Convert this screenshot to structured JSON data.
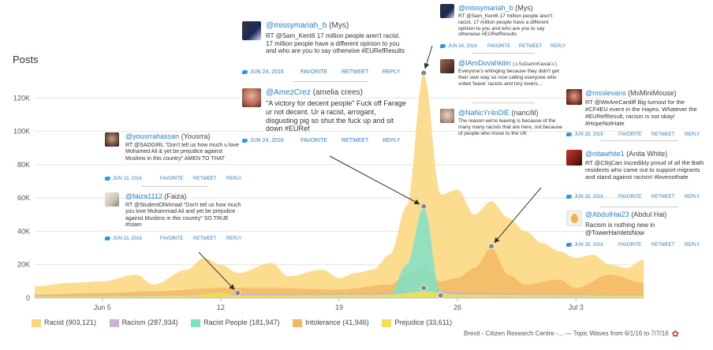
{
  "chart_data": {
    "type": "area",
    "ylabel": "Posts",
    "ylim": [
      0,
      140000
    ],
    "y_ticks": [
      0,
      20000,
      40000,
      60000,
      80000,
      100000,
      120000
    ],
    "y_tick_labels": [
      "0",
      "20K",
      "40K",
      "60K",
      "80K",
      "100K",
      "120K"
    ],
    "x_ticks": [
      "2016-06-05",
      "2016-06-12",
      "2016-06-19",
      "2016-06-26",
      "2016-07-03"
    ],
    "x_tick_labels": [
      "Jun 5",
      "12",
      "19",
      "26",
      "Jul 3"
    ],
    "x_range": [
      "2016-06-01",
      "2016-07-07"
    ],
    "legend": [
      {
        "name": "Racist (903,121)",
        "color": "#fcd67a"
      },
      {
        "name": "Racism (287,934)",
        "color": "#c8b4d9"
      },
      {
        "name": "Racist People (181,947)",
        "color": "#7fe0c8"
      },
      {
        "name": "Intolerance (41,946)",
        "color": "#f2b865"
      },
      {
        "name": "Prejudice (33,611)",
        "color": "#f4e04d"
      }
    ],
    "series": [
      {
        "name": "Racist",
        "color": "#fcd67a",
        "points": [
          [
            "2016-06-01",
            7000
          ],
          [
            "2016-06-03",
            9000
          ],
          [
            "2016-06-05",
            10000
          ],
          [
            "2016-06-07",
            14000
          ],
          [
            "2016-06-08",
            8000
          ],
          [
            "2016-06-10",
            17000
          ],
          [
            "2016-06-11",
            24000
          ],
          [
            "2016-06-12",
            20000
          ],
          [
            "2016-06-13",
            15000
          ],
          [
            "2016-06-15",
            21000
          ],
          [
            "2016-06-16",
            13000
          ],
          [
            "2016-06-18",
            17000
          ],
          [
            "2016-06-19",
            12000
          ],
          [
            "2016-06-20",
            15000
          ],
          [
            "2016-06-21",
            17000
          ],
          [
            "2016-06-22",
            26000
          ],
          [
            "2016-06-23",
            55000
          ],
          [
            "2016-06-24",
            135000
          ],
          [
            "2016-06-25",
            62000
          ],
          [
            "2016-06-26",
            65000
          ],
          [
            "2016-06-27",
            50000
          ],
          [
            "2016-06-28",
            58000
          ],
          [
            "2016-06-29",
            48000
          ],
          [
            "2016-06-30",
            40000
          ],
          [
            "2016-07-01",
            33000
          ],
          [
            "2016-07-02",
            28000
          ],
          [
            "2016-07-03",
            24000
          ],
          [
            "2016-07-04",
            26000
          ],
          [
            "2016-07-05",
            20000
          ],
          [
            "2016-07-06",
            18000
          ],
          [
            "2016-07-07",
            23000
          ]
        ]
      },
      {
        "name": "Intolerance",
        "color": "#f2b865",
        "points": [
          [
            "2016-06-01",
            2000
          ],
          [
            "2016-06-05",
            3000
          ],
          [
            "2016-06-08",
            4000
          ],
          [
            "2016-06-12",
            6000
          ],
          [
            "2016-06-15",
            6000
          ],
          [
            "2016-06-19",
            5000
          ],
          [
            "2016-06-22",
            8000
          ],
          [
            "2016-06-23",
            14000
          ],
          [
            "2016-06-24",
            18000
          ],
          [
            "2016-06-25",
            10000
          ],
          [
            "2016-06-26",
            12000
          ],
          [
            "2016-06-27",
            18000
          ],
          [
            "2016-06-28",
            30000
          ],
          [
            "2016-06-29",
            14000
          ],
          [
            "2016-06-30",
            8000
          ],
          [
            "2016-07-02",
            11000
          ],
          [
            "2016-07-03",
            6000
          ],
          [
            "2016-07-05",
            14000
          ],
          [
            "2016-07-07",
            9000
          ]
        ]
      },
      {
        "name": "Racism",
        "color": "#c8b4d9",
        "points": [
          [
            "2016-06-01",
            1500
          ],
          [
            "2016-06-08",
            2000
          ],
          [
            "2016-06-15",
            2500
          ],
          [
            "2016-06-22",
            3000
          ],
          [
            "2016-06-24",
            5000
          ],
          [
            "2016-06-27",
            3000
          ],
          [
            "2016-07-07",
            2000
          ]
        ]
      },
      {
        "name": "Racist People",
        "color": "#7fe0c8",
        "points": [
          [
            "2016-06-01",
            500
          ],
          [
            "2016-06-20",
            800
          ],
          [
            "2016-06-22",
            2000
          ],
          [
            "2016-06-23",
            20000
          ],
          [
            "2016-06-24",
            55000
          ],
          [
            "2016-06-25",
            3000
          ],
          [
            "2016-06-26",
            1200
          ],
          [
            "2016-07-07",
            800
          ]
        ]
      },
      {
        "name": "Prejudice",
        "color": "#f4e04d",
        "points": [
          [
            "2016-06-01",
            1000
          ],
          [
            "2016-06-10",
            1500
          ],
          [
            "2016-06-12",
            3000
          ],
          [
            "2016-06-13",
            1500
          ],
          [
            "2016-06-22",
            2000
          ],
          [
            "2016-06-24",
            4000
          ],
          [
            "2016-06-26",
            2000
          ],
          [
            "2016-07-07",
            1500
          ]
        ]
      }
    ],
    "markers": [
      [
        "2016-06-13",
        3000
      ],
      [
        "2016-06-24",
        135000
      ],
      [
        "2016-06-24",
        55000
      ],
      [
        "2016-06-24",
        6000
      ],
      [
        "2016-06-25",
        1500
      ],
      [
        "2016-06-28",
        31000
      ]
    ]
  },
  "tweets": [
    {
      "handle": "@missymariah_b",
      "name": "(Mys)",
      "text": "RT @Sam_Kent6 17 million people aren't racist. 17 million people have a different opinion to you and who are you to say otherwise #EURefResults",
      "date": "JUN 24, 2016"
    },
    {
      "handle": "@AmezCrez",
      "name": "(amelia crees)",
      "text": "\"A victory for decent people\" Fuck off Farage ur not decent. Ur a racist, arrogant, disgusting pig so shut the fuck up and sit down #EURef",
      "date": "JUN 24, 2016"
    },
    {
      "handle": "@yousrrahassan",
      "name": "(Yousrra)",
      "text": "RT @SADGIRL \"Don't tell us how much u love Mohamed Ali & yet be prejudice against Muslims in this country\" AMEN TO THAT",
      "date": "JUN 13, 2016"
    },
    {
      "handle": "@faiza1112",
      "name": "(Faiza)",
      "text": "RT @StudentOfAhmad \"Don't tell us how much you love Muhammad Ali and yet be prejudice against Muslims in this country\" SO TRUE #Islam",
      "date": "JUN 13, 2016"
    },
    {
      "handle": "@missymariah_b",
      "name": "(Mys)",
      "text": "RT @Sam_Kent6 17 million people aren't racist. 17 million people have a different opinion to you and who are you to say otherwise #EURefResults",
      "date": "JUN 24, 2016"
    },
    {
      "handle": "@IAmDovahkiiin",
      "name": "(⚔SoDamnKawaii⚔)",
      "text": "Everyone's whinging because they didn't get their own way so now calling everyone who voted 'leave' racists and tory lovers...",
      "date": ""
    },
    {
      "handle": "@NaNcYr4nDlE",
      "name": "(nanc/lil)",
      "text": "The reason we're leaving is because of the many many racists that are here, not because of people who move to the UK",
      "date": ""
    },
    {
      "handle": "@msslevans",
      "name": "(MsMiniMouse)",
      "text": "RT @WeAreCardiff Big turnout for the #CF4EU event in the Hayes. Whatever the #EURefResult, racism is not okay! #HopeNotHate",
      "date": "JUN 28, 2016"
    },
    {
      "handle": "@nitawhite1",
      "name": "(Anita White)",
      "text": "RT @CllrjCarr Incredibly proud of all the Bath residents who came out to support migrants and stand against racism! #lovenothate",
      "date": "JUN 28, 2016"
    },
    {
      "handle": "@AbdulHai23",
      "name": "(Abdul Hai)",
      "text": "Racism is nothing new in @TowerHamletsNow",
      "date": "JUN 28, 2016"
    }
  ],
  "tweet_actions": {
    "favorite": "FAVORITE",
    "retweet": "RETWEET",
    "reply": "REPLY"
  },
  "footer": {
    "text": "Brexit - Citizen Research Centre -... — Topic Waves from 6/1/16 to 7/7/16"
  }
}
